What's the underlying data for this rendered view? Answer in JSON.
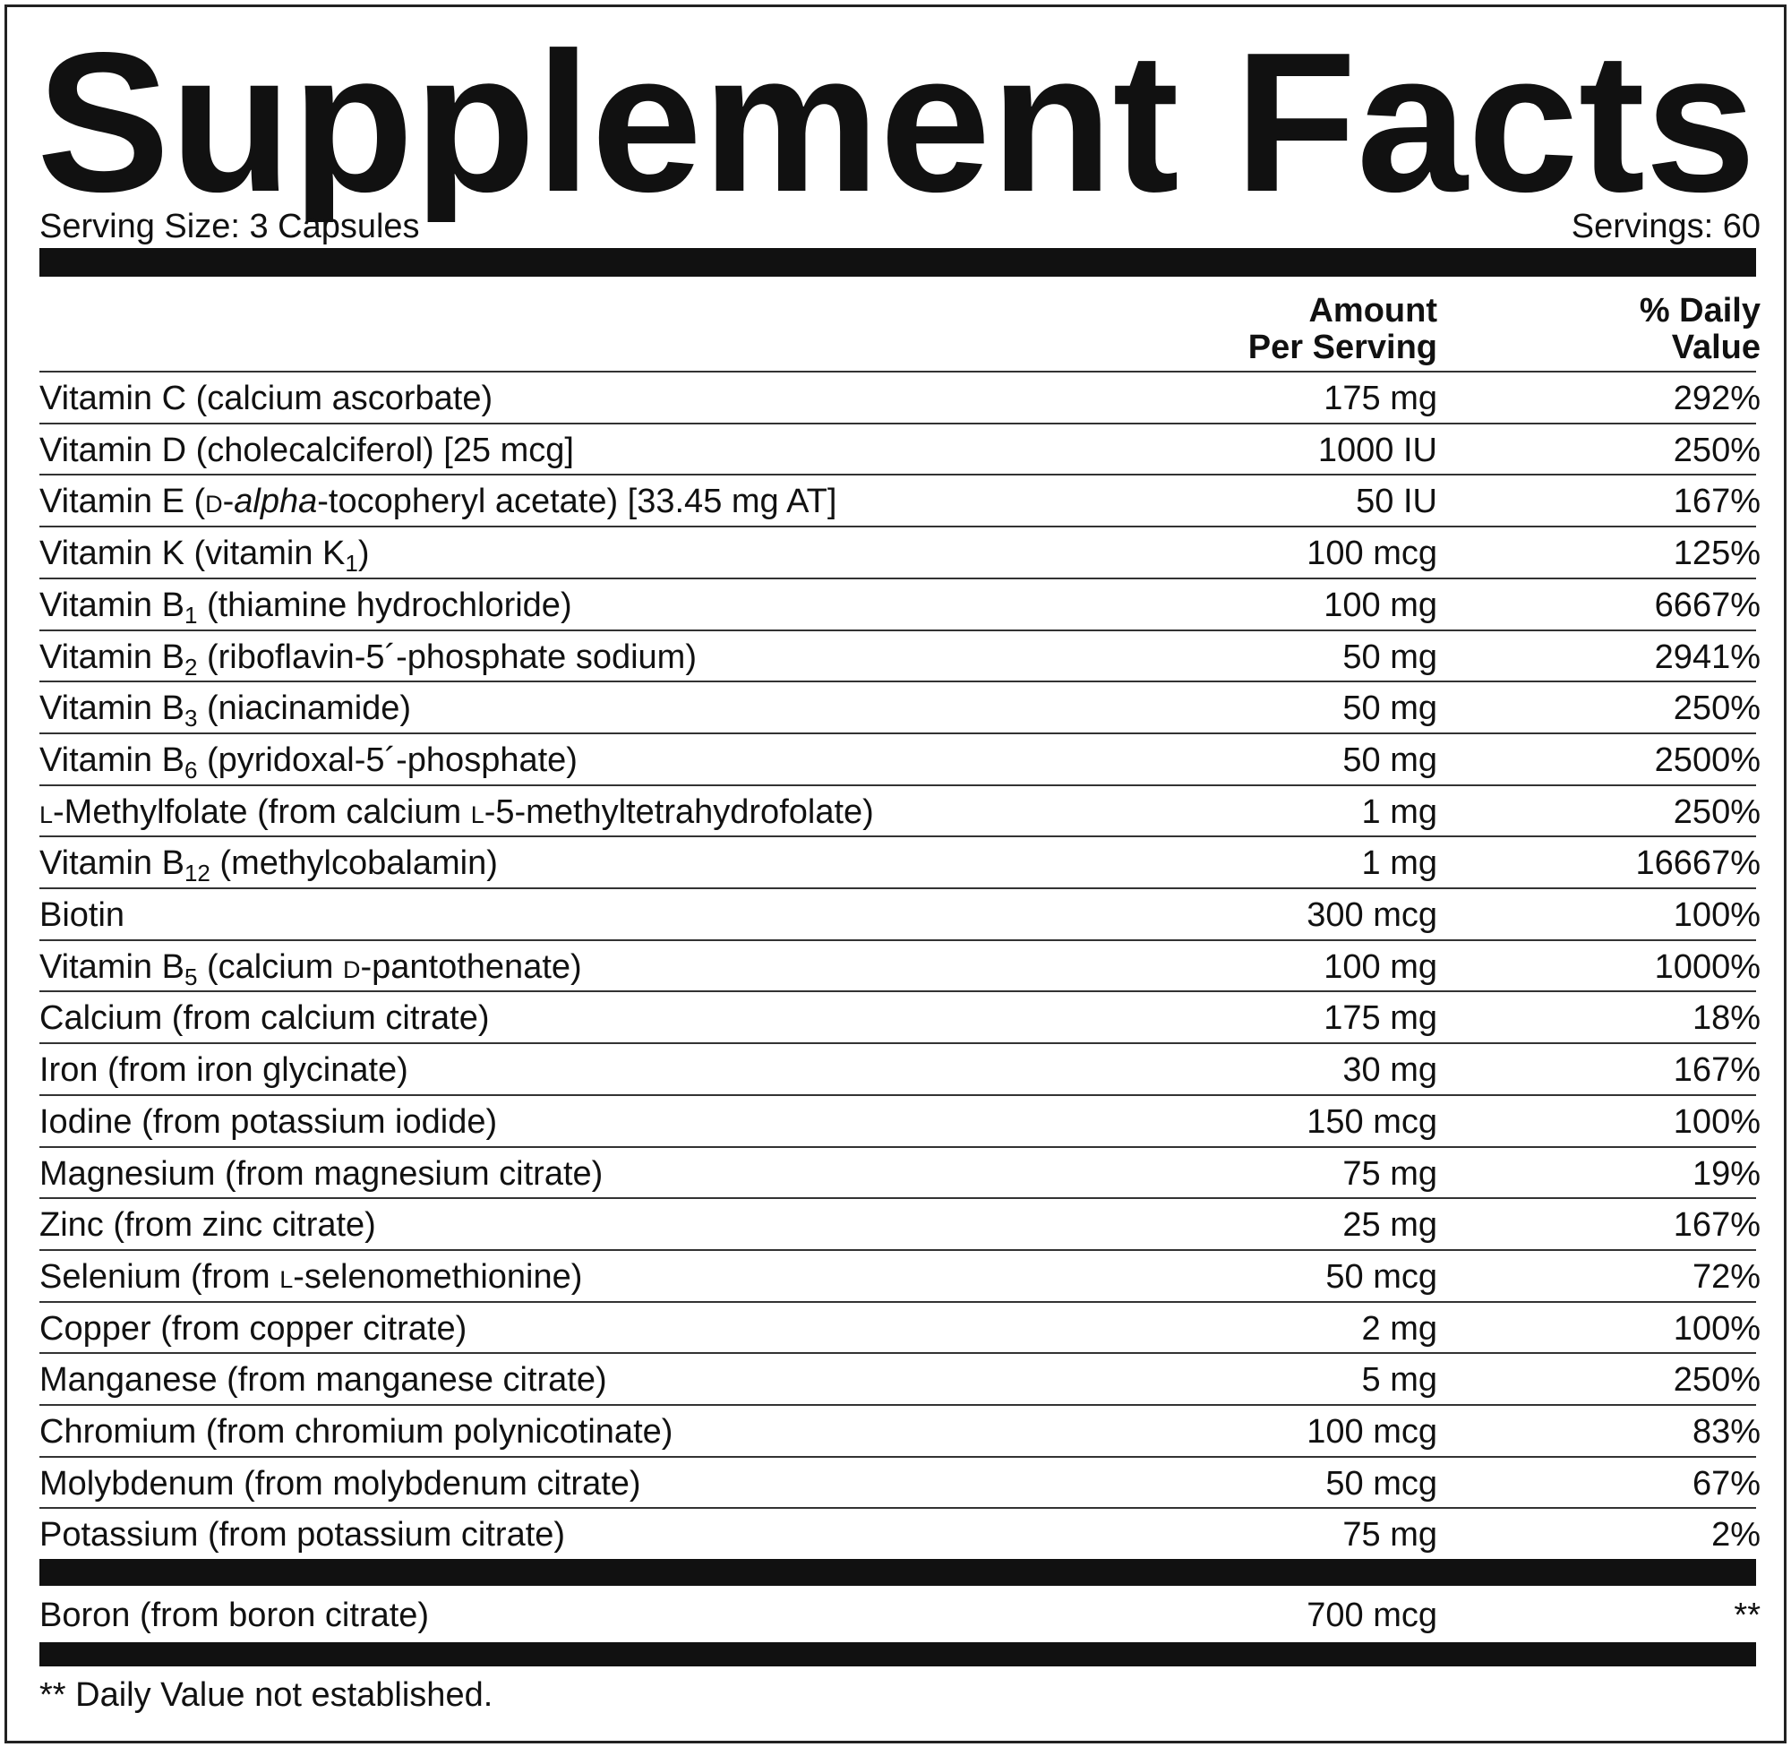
{
  "title": "Supplement Facts",
  "serving_size": "Serving Size: 3 Capsules",
  "servings": "Servings: 60",
  "header": {
    "amount": [
      "Amount",
      "Per Serving"
    ],
    "daily_value": [
      "% Daily",
      "Value"
    ]
  },
  "rows": [
    {
      "name": [
        "Vitamin C (calcium ascorbate)"
      ],
      "amount": "175 mg",
      "dv": "292%"
    },
    {
      "name": [
        "Vitamin D (cholecalciferol) [25 mcg]"
      ],
      "amount": "1000 IU",
      "dv": "250%"
    },
    {
      "name": [
        "Vitamin E (",
        {
          "sc": "D"
        },
        "-",
        {
          "i": "alpha"
        },
        "-tocopheryl acetate) [33.45 mg AT]"
      ],
      "amount": "50 IU",
      "dv": "167%"
    },
    {
      "name": [
        "Vitamin K (vitamin K",
        {
          "sub": "1"
        },
        ")"
      ],
      "amount": "100 mcg",
      "dv": "125%"
    },
    {
      "name": [
        "Vitamin B",
        {
          "sub": "1"
        },
        " (thiamine hydrochloride)"
      ],
      "amount": "100 mg",
      "dv": "6667%"
    },
    {
      "name": [
        "Vitamin B",
        {
          "sub": "2"
        },
        " (riboflavin-5´-phosphate sodium)"
      ],
      "amount": "50 mg",
      "dv": "2941%"
    },
    {
      "name": [
        "Vitamin B",
        {
          "sub": "3"
        },
        " (niacinamide)"
      ],
      "amount": "50 mg",
      "dv": "250%"
    },
    {
      "name": [
        "Vitamin B",
        {
          "sub": "6"
        },
        " (pyridoxal-5´-phosphate)"
      ],
      "amount": "50 mg",
      "dv": "2500%"
    },
    {
      "name": [
        {
          "sc": "L"
        },
        "-Methylfolate (from calcium ",
        {
          "sc": "L"
        },
        "-5-methyltetrahydrofolate)"
      ],
      "amount": "1 mg",
      "dv": "250%"
    },
    {
      "name": [
        "Vitamin B",
        {
          "sub": "12"
        },
        " (methylcobalamin)"
      ],
      "amount": "1 mg",
      "dv": "16667%"
    },
    {
      "name": [
        "Biotin"
      ],
      "amount": "300 mcg",
      "dv": "100%"
    },
    {
      "name": [
        "Vitamin B",
        {
          "sub": "5"
        },
        " (calcium ",
        {
          "sc": "D"
        },
        "-pantothenate)"
      ],
      "amount": "100 mg",
      "dv": "1000%"
    },
    {
      "name": [
        "Calcium (from calcium citrate)"
      ],
      "amount": "175 mg",
      "dv": "18%"
    },
    {
      "name": [
        "Iron (from iron glycinate)"
      ],
      "amount": "30 mg",
      "dv": "167%"
    },
    {
      "name": [
        "Iodine (from potassium iodide)"
      ],
      "amount": "150 mcg",
      "dv": "100%"
    },
    {
      "name": [
        "Magnesium (from magnesium citrate)"
      ],
      "amount": "75 mg",
      "dv": "19%"
    },
    {
      "name": [
        "Zinc (from zinc citrate)"
      ],
      "amount": "25 mg",
      "dv": "167%"
    },
    {
      "name": [
        "Selenium (from ",
        {
          "sc": "L"
        },
        "-selenomethionine)"
      ],
      "amount": "50 mcg",
      "dv": "72%"
    },
    {
      "name": [
        "Copper (from copper citrate)"
      ],
      "amount": "2 mg",
      "dv": "100%"
    },
    {
      "name": [
        "Manganese (from manganese citrate)"
      ],
      "amount": "5 mg",
      "dv": "250%"
    },
    {
      "name": [
        "Chromium (from chromium polynicotinate)"
      ],
      "amount": "100 mcg",
      "dv": "83%"
    },
    {
      "name": [
        "Molybdenum (from molybdenum citrate)"
      ],
      "amount": "50 mcg",
      "dv": "67%"
    },
    {
      "name": [
        "Potassium (from potassium citrate)"
      ],
      "amount": "75 mg",
      "dv": "2%"
    }
  ],
  "other": {
    "name": [
      "Boron (from boron citrate)"
    ],
    "amount": "700 mcg",
    "dv": "**"
  },
  "footnote": "** Daily Value not established."
}
